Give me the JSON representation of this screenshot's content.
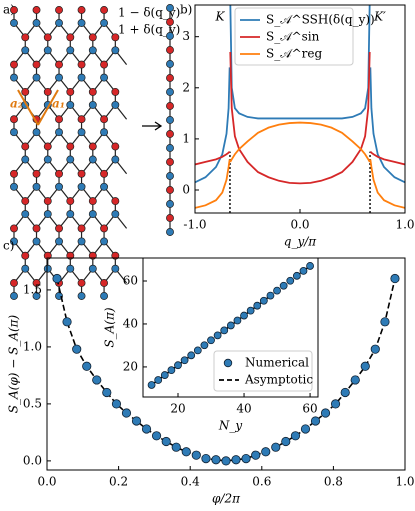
{
  "diagram": {
    "label": "a)",
    "upper_hopping": "1 − δ(q_y)",
    "lower_hopping": "1 + δ(q_y)",
    "vector_2": "a₂",
    "vector_1": "a₁"
  },
  "chart_data": [
    {
      "type": "line",
      "title": "b)",
      "xlabel": "q_y/π",
      "x": [
        -1,
        -0.9,
        -0.8,
        -0.74,
        -0.7,
        -0.68,
        -0.67,
        -0.6665,
        -0.664,
        -0.65,
        -0.62,
        -0.58,
        -0.5,
        -0.4,
        -0.3,
        -0.2,
        -0.1,
        0,
        0.1,
        0.2,
        0.3,
        0.4,
        0.5,
        0.58,
        0.62,
        0.65,
        0.664,
        0.6665,
        0.67,
        0.68,
        0.7,
        0.74,
        0.8,
        0.9,
        1
      ],
      "series": [
        {
          "name": "S_𝒜^SSH(δ(q_y))",
          "color": "#2e7bb6",
          "values": [
            0.15,
            0.25,
            0.45,
            0.7,
            1.1,
            1.6,
            2.4,
            null,
            3.7,
            2.0,
            1.6,
            1.5,
            1.43,
            1.4,
            1.4,
            1.4,
            1.4,
            1.4,
            1.4,
            1.4,
            1.4,
            1.4,
            1.43,
            1.5,
            1.6,
            2.0,
            3.7,
            null,
            2.4,
            1.6,
            1.1,
            0.7,
            0.45,
            0.25,
            0.15
          ]
        },
        {
          "name": "S_𝒜^sin",
          "color": "#d62728",
          "values": [
            0.5,
            0.55,
            0.6,
            0.65,
            0.7,
            0.73,
            0.75,
            null,
            2.7,
            1.6,
            1.05,
            0.8,
            0.55,
            0.35,
            0.25,
            0.18,
            0.14,
            0.13,
            0.14,
            0.18,
            0.25,
            0.35,
            0.55,
            0.8,
            1.05,
            1.6,
            2.7,
            null,
            0.75,
            0.73,
            0.7,
            0.65,
            0.6,
            0.55,
            0.5
          ]
        },
        {
          "name": "S_𝒜^reg",
          "color": "#ff7f0e",
          "values": [
            -0.35,
            -0.3,
            -0.2,
            -0.05,
            0.2,
            0.45,
            0.6,
            null,
            0.55,
            0.6,
            0.7,
            0.8,
            0.95,
            1.12,
            1.22,
            1.28,
            1.31,
            1.32,
            1.31,
            1.28,
            1.22,
            1.12,
            0.95,
            0.8,
            0.7,
            0.6,
            0.55,
            null,
            0.6,
            0.45,
            0.2,
            -0.05,
            -0.2,
            -0.3,
            -0.35
          ]
        }
      ],
      "xlim": [
        -1,
        1
      ],
      "ylim": [
        -0.45,
        3.62
      ],
      "xticks": [
        {
          "value": -1,
          "label": "-1.0"
        },
        {
          "value": 0,
          "label": "0.0"
        },
        {
          "value": 1,
          "label": "1.0"
        }
      ],
      "yticks": [
        0,
        1,
        2,
        3
      ],
      "vlines": [
        {
          "x": -0.667,
          "top": 0.75
        },
        {
          "x": 0.667,
          "top": 0.75
        }
      ],
      "annotations": [
        "K",
        "K′"
      ],
      "legend": "upper center"
    },
    {
      "type": "scatter",
      "title": "c)",
      "xlabel": "φ/2π",
      "ylabel": "S_A(φ) − S_A(π)",
      "x": [
        0.028,
        0.056,
        0.083,
        0.111,
        0.139,
        0.167,
        0.194,
        0.222,
        0.25,
        0.278,
        0.306,
        0.333,
        0.361,
        0.389,
        0.417,
        0.444,
        0.472,
        0.5,
        0.528,
        0.556,
        0.583,
        0.611,
        0.639,
        0.667,
        0.694,
        0.722,
        0.75,
        0.778,
        0.806,
        0.833,
        0.861,
        0.889,
        0.917,
        0.944,
        0.972
      ],
      "series": [
        {
          "style": "markers",
          "color": "#2e7bb6",
          "values": [
            1.6,
            1.22,
            0.98,
            0.83,
            0.71,
            0.6,
            0.5,
            0.42,
            0.35,
            0.28,
            0.22,
            0.17,
            0.12,
            0.08,
            0.05,
            0.02,
            0.01,
            0.0,
            0.01,
            0.02,
            0.05,
            0.08,
            0.12,
            0.17,
            0.22,
            0.28,
            0.35,
            0.42,
            0.5,
            0.6,
            0.71,
            0.83,
            0.98,
            1.22,
            1.6
          ]
        },
        {
          "style": "dashed",
          "color": "#000000",
          "values": [
            1.6,
            1.22,
            0.98,
            0.83,
            0.71,
            0.6,
            0.5,
            0.42,
            0.35,
            0.28,
            0.22,
            0.17,
            0.12,
            0.08,
            0.05,
            0.02,
            0.01,
            0.0,
            0.01,
            0.02,
            0.05,
            0.08,
            0.12,
            0.17,
            0.22,
            0.28,
            0.35,
            0.42,
            0.5,
            0.6,
            0.71,
            0.83,
            0.98,
            1.22,
            1.6
          ]
        }
      ],
      "xlim": [
        0,
        1
      ],
      "ylim": [
        -0.08,
        1.78
      ],
      "xticks": [
        {
          "value": 0,
          "label": "0.0"
        },
        0.2,
        0.4,
        0.6,
        0.8,
        {
          "value": 1,
          "label": "1.0"
        }
      ],
      "yticks": [
        {
          "value": 0,
          "label": "0.0"
        },
        0.5,
        {
          "value": 1,
          "label": "1.0"
        },
        1.5
      ]
    },
    {
      "type": "scatter",
      "xlabel": "N_y",
      "ylabel": "S_A(π)",
      "x": [
        12,
        14,
        16,
        18,
        20,
        22,
        24,
        26,
        28,
        30,
        32,
        34,
        36,
        38,
        40,
        42,
        44,
        46,
        48,
        50,
        52,
        54,
        56,
        58,
        60
      ],
      "series": [
        {
          "name": "Numerical",
          "style": "markers",
          "color": "#2e7bb6",
          "values": [
            11.6,
            13.9,
            16.2,
            18.5,
            20.8,
            23.1,
            25.4,
            27.7,
            30.1,
            32.4,
            34.7,
            37.0,
            39.3,
            41.6,
            43.9,
            46.2,
            48.5,
            50.8,
            53.2,
            55.5,
            57.8,
            60.1,
            62.4,
            64.7,
            67.0
          ]
        },
        {
          "name": "Asymptotic",
          "style": "dashed",
          "color": "#000000",
          "values": [
            11.6,
            13.9,
            16.2,
            18.5,
            20.8,
            23.1,
            25.4,
            27.7,
            30.1,
            32.4,
            34.7,
            37.0,
            39.3,
            41.6,
            43.9,
            46.2,
            48.5,
            50.8,
            53.2,
            55.5,
            57.8,
            60.1,
            62.4,
            64.7,
            67.0
          ]
        }
      ],
      "xlim": [
        9.4,
        62.4
      ],
      "ylim": [
        6,
        70.7
      ],
      "xticks": [
        20,
        40,
        60
      ],
      "yticks": [
        20,
        40,
        60
      ],
      "legend": "lower right"
    }
  ]
}
